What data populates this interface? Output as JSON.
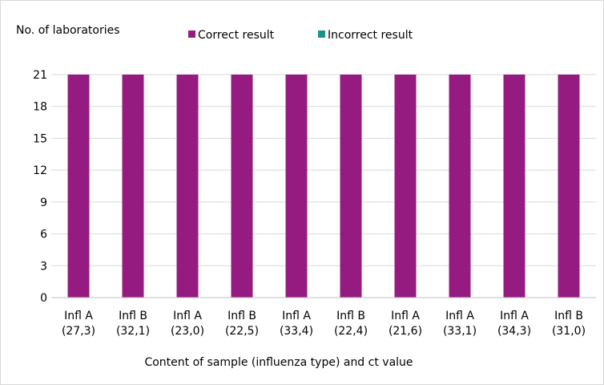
{
  "chart_data": {
    "type": "bar",
    "ylabel": "No. of laboratories",
    "xlabel": "Content of sample (influenza type) and ct value",
    "categories": [
      [
        "Infl A",
        "(27,3)"
      ],
      [
        "Infl B",
        "(32,1)"
      ],
      [
        "Infl A",
        "(23,0)"
      ],
      [
        "Infl B",
        "(22,5)"
      ],
      [
        "Infl A",
        "(33,4)"
      ],
      [
        "Infl B",
        "(22,4)"
      ],
      [
        "Infl A",
        "(21,6)"
      ],
      [
        "Infl A",
        "(33,1)"
      ],
      [
        "Infl A",
        "(34,3)"
      ],
      [
        "Infl B",
        "(31,0)"
      ]
    ],
    "series": [
      {
        "name": "Correct result",
        "color": "#951b81",
        "values": [
          21,
          21,
          21,
          21,
          21,
          21,
          21,
          21,
          21,
          21
        ]
      },
      {
        "name": "Incorrect result",
        "color": "#1a9487",
        "values": [
          0,
          0,
          0,
          0,
          0,
          0,
          0,
          0,
          0,
          0
        ]
      }
    ],
    "stacked": true,
    "ylim": [
      0,
      21
    ],
    "yticks": [
      0,
      3,
      6,
      9,
      12,
      15,
      18,
      21
    ],
    "grid": "horizontal",
    "legend": "top"
  }
}
